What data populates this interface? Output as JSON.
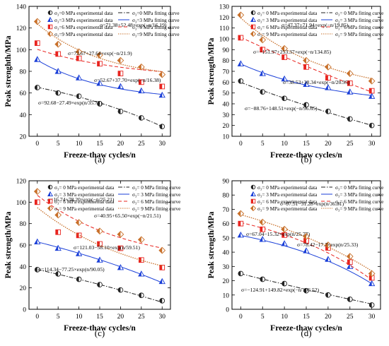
{
  "figure": {
    "colors": {
      "s0": "#222222",
      "s3": "#1a3fd8",
      "s6": "#e8241f",
      "s9": "#c8702a",
      "axis": "#000000"
    },
    "markers": [
      "circle-half",
      "triangle-half",
      "square-half",
      "diamond-half"
    ]
  },
  "chart_data": [
    {
      "type": "line",
      "panel_label": "(a)",
      "xlabel": "Freeze-thaw cycles/n",
      "ylabel": "Peak strenghth/MPa",
      "x": [
        0,
        5,
        10,
        15,
        20,
        25,
        30
      ],
      "xlim": [
        -2,
        32
      ],
      "ylim": [
        20,
        140
      ],
      "yticks": [
        20,
        40,
        60,
        80,
        100,
        120,
        140
      ],
      "legend": [
        "σ₃=0 MPa experimental data",
        "σ₃=0 MPa fitting curve",
        "σ₃=3 MPa experimental data",
        "σ₃=3 MPa fitting curve",
        "σ₃=6 MPa experimental data",
        "σ₃=6 MPa fitting curve",
        "σ₃=9 MPa experimental data",
        "σ₃=9 MPa fitting curve"
      ],
      "series": [
        {
          "key": "s0",
          "values": [
            65,
            60,
            57,
            50,
            43,
            37,
            29
          ],
          "fit": {
            "a": 92.68,
            "b": -27.49,
            "c": 35.73
          }
        },
        {
          "key": "s3",
          "values": [
            91,
            80,
            74,
            69,
            66,
            62,
            58
          ],
          "fit": {
            "a": 52.67,
            "b": 37.7,
            "c": 16.38
          }
        },
        {
          "key": "s6",
          "values": [
            106,
            96,
            92,
            87,
            78,
            70,
            66
          ],
          "fit": {
            "a": 72.67,
            "b": 27.64,
            "c": 21.9
          }
        },
        {
          "key": "s9",
          "values": [
            126,
            105,
            98,
            95,
            90,
            84,
            77
          ],
          "fit": {
            "a": 71.38,
            "b": 52.48,
            "c": 16.19
          }
        }
      ],
      "annotations": [
        "σ=71.38+52.48×exp(−n/16.19)",
        "σ=72.67+27.64×exp(−n/21.9)",
        "σ=52.67+37.70×exp(−n/16.38)",
        "σ=92.68−27.49×exp(n/35.73)"
      ]
    },
    {
      "type": "line",
      "panel_label": "(b)",
      "xlabel": "Freeze-thaw cycles/n",
      "ylabel": "Peak strength/MPa",
      "x": [
        0,
        5,
        10,
        15,
        20,
        25,
        30
      ],
      "xlim": [
        -2,
        32
      ],
      "ylim": [
        10,
        130
      ],
      "yticks": [
        10,
        20,
        30,
        40,
        50,
        60,
        70,
        80,
        90,
        100,
        110,
        120,
        130
      ],
      "legend": [
        "σ₃= 0 MPa experimental data",
        "σ₃= 0 MPa fitting curve",
        "σ₃= 3 MPa experimental data",
        "σ₃= 3 MPa fitting curve",
        "σ₃= 6 MPa experimental data",
        "σ₃= 6 MPa fitting curve",
        "σ₃= 9 MPa experimental data",
        "σ₃= 9 MPa fitting curve"
      ],
      "series": [
        {
          "key": "s0",
          "values": [
            61,
            51,
            45,
            39,
            33,
            26,
            20
          ],
          "fit": {
            "a": -88.76,
            "b": 148.51,
            "c": 96.65
          }
        },
        {
          "key": "s3",
          "values": [
            77,
            68,
            63,
            58,
            55,
            51,
            47
          ],
          "fit": {
            "a": 38.53,
            "b": 38.34,
            "c": 20.95
          }
        },
        {
          "key": "s6",
          "values": [
            101,
            90,
            83,
            74,
            64,
            59,
            52
          ],
          "fit": {
            "a": -151.97,
            "b": 253.37,
            "c": 134.85
          }
        },
        {
          "key": "s9",
          "values": [
            122,
            99,
            91,
            80,
            74,
            68,
            61
          ],
          "fit": {
            "a": 47.37,
            "b": 71.94,
            "c": 19.85
          }
        }
      ],
      "annotations": [
        "σ=47.37+71.94×exp(−n/19.85)",
        "σ=−151.97+253.37×exp(−n/134.85)",
        "σ=38.53+38.34×exp(−n/20.95)",
        "σ=−88.76+148.51×exp(−n/96.65)"
      ]
    },
    {
      "type": "line",
      "panel_label": "(c)",
      "xlabel": "Freeze-thaw cycles/n",
      "ylabel": "Peak strength/MPa",
      "x": [
        0,
        5,
        10,
        15,
        20,
        25,
        30
      ],
      "xlim": [
        -2,
        32
      ],
      "ylim": [
        0,
        120
      ],
      "yticks": [
        0,
        20,
        40,
        60,
        80,
        100,
        120
      ],
      "legend": [
        "σ₃= 0 MPa experimental data",
        "σ₃= 0 MPa fitting curve",
        "σ₃= 3 MPa experimental data",
        "σ₃= 3 MPa fitting curve",
        "σ₃= 6 MPa experimental data",
        "σ₃= 6 MPa fitting curve",
        "σ₃= 9 MPa experimental data",
        "σ₃= 9 MPa fitting curve"
      ],
      "series": [
        {
          "key": "s0",
          "values": [
            37,
            33,
            28,
            23,
            18,
            13,
            8
          ],
          "fit": {
            "a": 114.34,
            "b": -77.25,
            "c": 90.05
          }
        },
        {
          "key": "s3",
          "values": [
            63,
            57,
            52,
            46,
            39,
            33,
            26
          ],
          "fit": {
            "a": 121.03,
            "b": -58.1,
            "c": 59.51
          }
        },
        {
          "key": "s6",
          "values": [
            100,
            72,
            69,
            61,
            57,
            46,
            39
          ],
          "fit": {
            "a": 40.95,
            "b": 65.5,
            "c": 21.51
          }
        },
        {
          "key": "s9",
          "values": [
            110,
            88,
            81,
            73,
            70,
            65,
            55
          ],
          "fit": {
            "a": 16.74,
            "b": 78.2,
            "c": 25.21
          }
        }
      ],
      "annotations": [
        "σ=16.74+78.20×exp(−n/25.21)",
        "σ=40.95+65.50×exp(−n/21.51)",
        "σ=121.03−58.10×exp(n/59.51)",
        "σ=114.34−77.25×exp(n/90.05)"
      ]
    },
    {
      "type": "line",
      "panel_label": "(d)",
      "xlabel": "Freeze-thaw cycles/n",
      "ylabel": "Peak strength/MPa",
      "x": [
        0,
        5,
        10,
        15,
        20,
        25,
        30
      ],
      "xlim": [
        -2,
        32
      ],
      "ylim": [
        0,
        90
      ],
      "yticks": [
        0,
        10,
        20,
        30,
        40,
        50,
        60,
        70,
        80,
        90
      ],
      "legend": [
        "σ₃= 0 MPa experimental data",
        "σ₃= 0 MPa fitting curve",
        "σ₃= 3 MPa experimental data",
        "σ₃= 3 MPa fitting curve",
        "σ₃= 6 MPa experimental data",
        "σ₃= 6 MPa fitting curve",
        "σ₃= 9 MPa experimental data",
        "σ₃= 9 MPa fitting curve"
      ],
      "series": [
        {
          "key": "s0",
          "values": [
            25,
            21,
            18,
            13,
            10,
            7,
            3
          ],
          "fit": {
            "a": -124.91,
            "b": 149.82,
            "c": 196.52
          }
        },
        {
          "key": "s3",
          "values": [
            52,
            49,
            46,
            41,
            35,
            30,
            18
          ],
          "fit": {
            "a": 67.04,
            "b": -15.32,
            "c": 25.77
          }
        },
        {
          "key": "s6",
          "values": [
            60,
            56,
            52,
            48,
            43,
            33,
            22
          ],
          "fit": {
            "a": 78.42,
            "b": -17.7,
            "c": 25.33
          }
        },
        {
          "key": "s9",
          "values": [
            67,
            61,
            56,
            51,
            45,
            37,
            25
          ],
          "fit": {
            "a": 97.51,
            "b": -31.28,
            "c": 36.81
          }
        }
      ],
      "annotations": [
        "σ=97.51−31.28×exp(n/36.81)",
        "σ=67.04−15.32×exp(n/25.77)",
        "σ=78.42−17.7×exp(n/25.33)",
        "σ=−124.91+149.82×exp(−n/196.52)"
      ]
    }
  ]
}
